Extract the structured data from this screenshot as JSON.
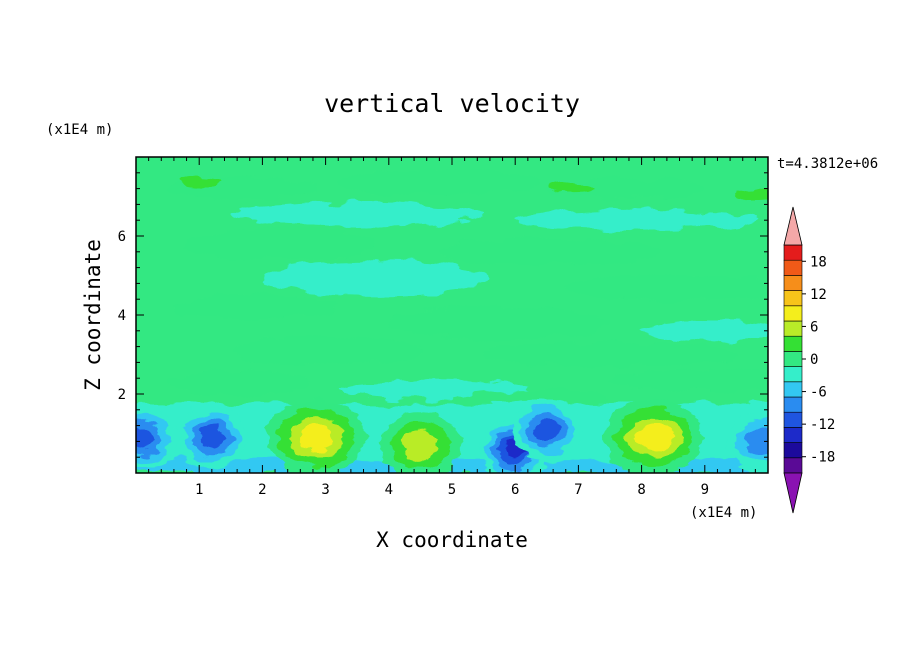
{
  "chart_data": {
    "type": "heatmap",
    "title": "vertical velocity",
    "xlabel": "X coordinate",
    "ylabel": "Z coordinate",
    "x_unit": "(x1E4 m)",
    "y_unit": "(x1E4 m)",
    "time_label": "t=4.3812e+06",
    "xlim": [
      0,
      10
    ],
    "ylim": [
      0,
      8
    ],
    "x_ticks": [
      "1",
      "2",
      "3",
      "4",
      "5",
      "6",
      "7",
      "8",
      "9"
    ],
    "y_ticks": [
      "2",
      "4",
      "6"
    ],
    "colorbar": {
      "levels": [
        -21,
        -18,
        -15,
        -12,
        -9,
        -6,
        -3,
        0,
        3,
        6,
        9,
        12,
        15,
        18,
        21
      ],
      "tick_labels": [
        "18",
        "12",
        "6",
        "0",
        "-6",
        "-12",
        "-18"
      ],
      "colors": [
        "#5a0a96",
        "#1c0a9c",
        "#1d2ac9",
        "#1f55e0",
        "#2a8cf0",
        "#33c8f2",
        "#35eeca",
        "#33e882",
        "#34e034",
        "#b9ec28",
        "#f4ee1c",
        "#f7c41a",
        "#f68e1a",
        "#f05a18",
        "#e41c1c"
      ],
      "over_color": "#f4a8a8",
      "under_color": "#8a12b2"
    },
    "features": [
      {
        "x": 0.1,
        "z": 0.9,
        "peak": -13,
        "kind": "downdraft"
      },
      {
        "x": 1.2,
        "z": 0.9,
        "peak": -13,
        "kind": "downdraft"
      },
      {
        "x": 2.85,
        "z": 0.9,
        "peak": 13,
        "kind": "updraft"
      },
      {
        "x": 4.5,
        "z": 0.7,
        "peak": 8,
        "kind": "updraft"
      },
      {
        "x": 6.0,
        "z": 0.6,
        "peak": -15,
        "kind": "downdraft"
      },
      {
        "x": 6.5,
        "z": 1.1,
        "peak": -13,
        "kind": "downdraft"
      },
      {
        "x": 8.2,
        "z": 0.9,
        "peak": 13,
        "kind": "updraft"
      },
      {
        "x": 9.9,
        "z": 0.8,
        "peak": -8,
        "kind": "downdraft"
      }
    ]
  }
}
